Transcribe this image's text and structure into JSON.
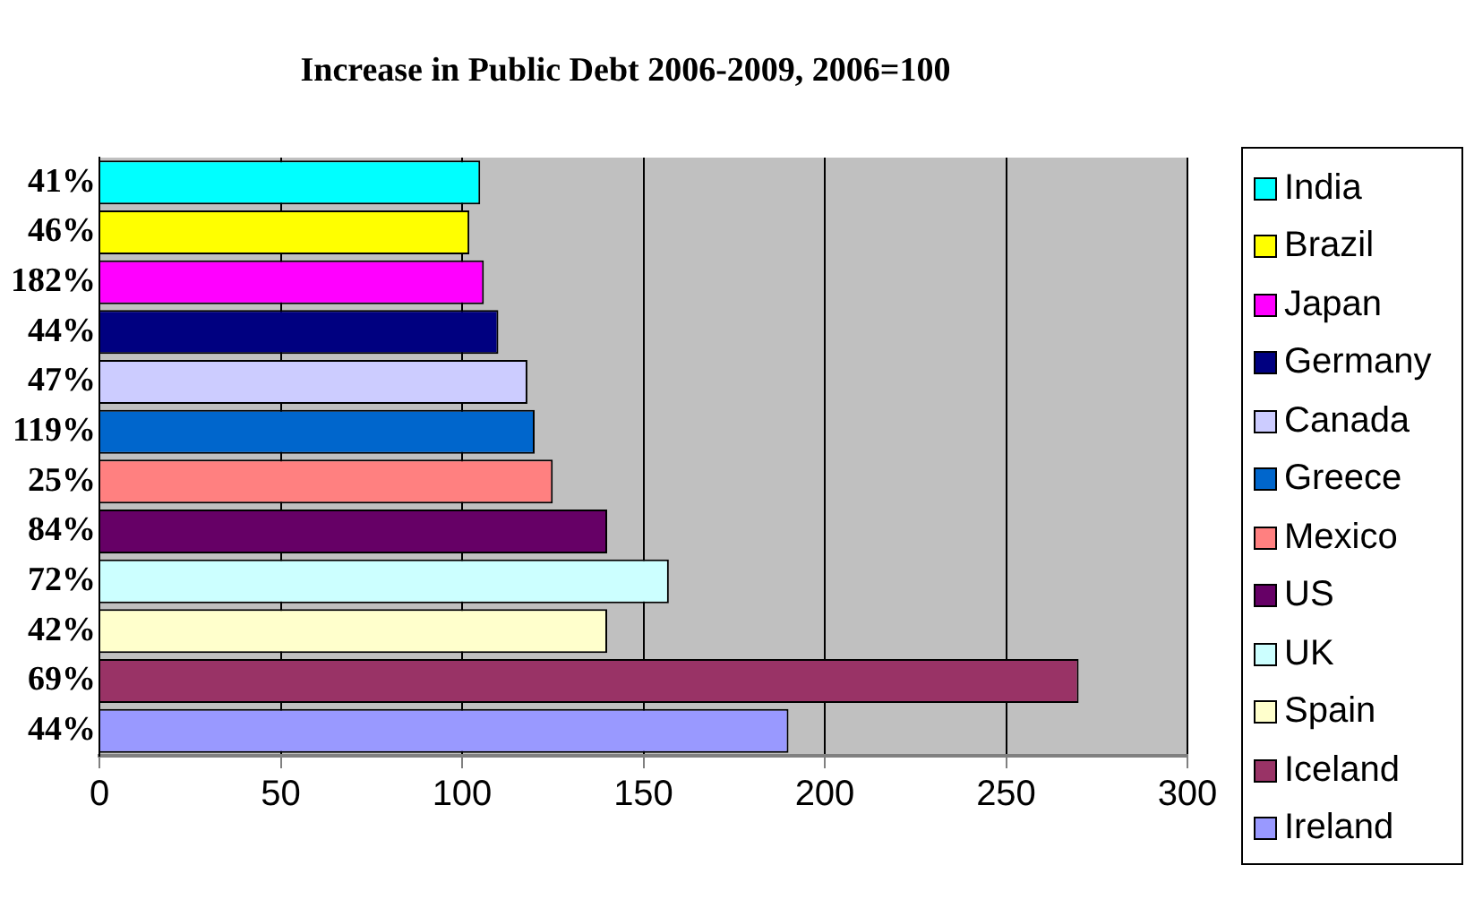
{
  "chart_data": {
    "type": "bar",
    "orientation": "horizontal",
    "stacked": true,
    "title": "Increase in Public Debt 2006-2009, 2006=100",
    "categories": [
      "41%",
      "46%",
      "182%",
      "44%",
      "47%",
      "119%",
      "25%",
      "84%",
      "72%",
      "42%",
      "69%",
      "44%"
    ],
    "series": [
      {
        "name": "India",
        "color": "#00ffff",
        "values": [
          105,
          null,
          null,
          null,
          null,
          null,
          null,
          null,
          null,
          null,
          null,
          null
        ]
      },
      {
        "name": "Brazil",
        "color": "#ffff00",
        "values": [
          null,
          102,
          null,
          null,
          null,
          null,
          null,
          null,
          null,
          null,
          null,
          null
        ]
      },
      {
        "name": "Japan",
        "color": "#ff00ff",
        "values": [
          null,
          null,
          106,
          null,
          null,
          null,
          null,
          null,
          null,
          null,
          null,
          null
        ]
      },
      {
        "name": "Germany",
        "color": "#000080",
        "values": [
          null,
          null,
          null,
          110,
          null,
          null,
          null,
          null,
          null,
          null,
          null,
          null
        ]
      },
      {
        "name": "Canada",
        "color": "#ccccff",
        "values": [
          null,
          null,
          null,
          null,
          118,
          null,
          null,
          null,
          null,
          null,
          null,
          null
        ]
      },
      {
        "name": "Greece",
        "color": "#0066cc",
        "values": [
          null,
          null,
          null,
          null,
          null,
          120,
          null,
          null,
          null,
          null,
          null,
          null
        ]
      },
      {
        "name": "Mexico",
        "color": "#ff8080",
        "values": [
          null,
          null,
          null,
          null,
          null,
          null,
          125,
          null,
          null,
          null,
          null,
          null
        ]
      },
      {
        "name": "US",
        "color": "#660066",
        "values": [
          null,
          null,
          null,
          null,
          null,
          null,
          null,
          140,
          null,
          null,
          null,
          null
        ]
      },
      {
        "name": "UK",
        "color": "#ccffff",
        "values": [
          null,
          null,
          null,
          null,
          null,
          null,
          null,
          null,
          157,
          null,
          null,
          null
        ]
      },
      {
        "name": "Spain",
        "color": "#ffffcc",
        "values": [
          null,
          null,
          null,
          null,
          null,
          null,
          null,
          null,
          null,
          140,
          null,
          null
        ]
      },
      {
        "name": "Iceland",
        "color": "#993366",
        "values": [
          null,
          null,
          null,
          null,
          null,
          null,
          null,
          null,
          null,
          null,
          270,
          null
        ]
      },
      {
        "name": "Ireland",
        "color": "#9999ff",
        "values": [
          null,
          null,
          null,
          null,
          null,
          null,
          null,
          null,
          null,
          null,
          null,
          190
        ]
      }
    ],
    "xlim": [
      0,
      300
    ],
    "xticks": [
      0,
      50,
      100,
      150,
      200,
      250,
      300
    ],
    "grid": "x",
    "legend": "right"
  }
}
